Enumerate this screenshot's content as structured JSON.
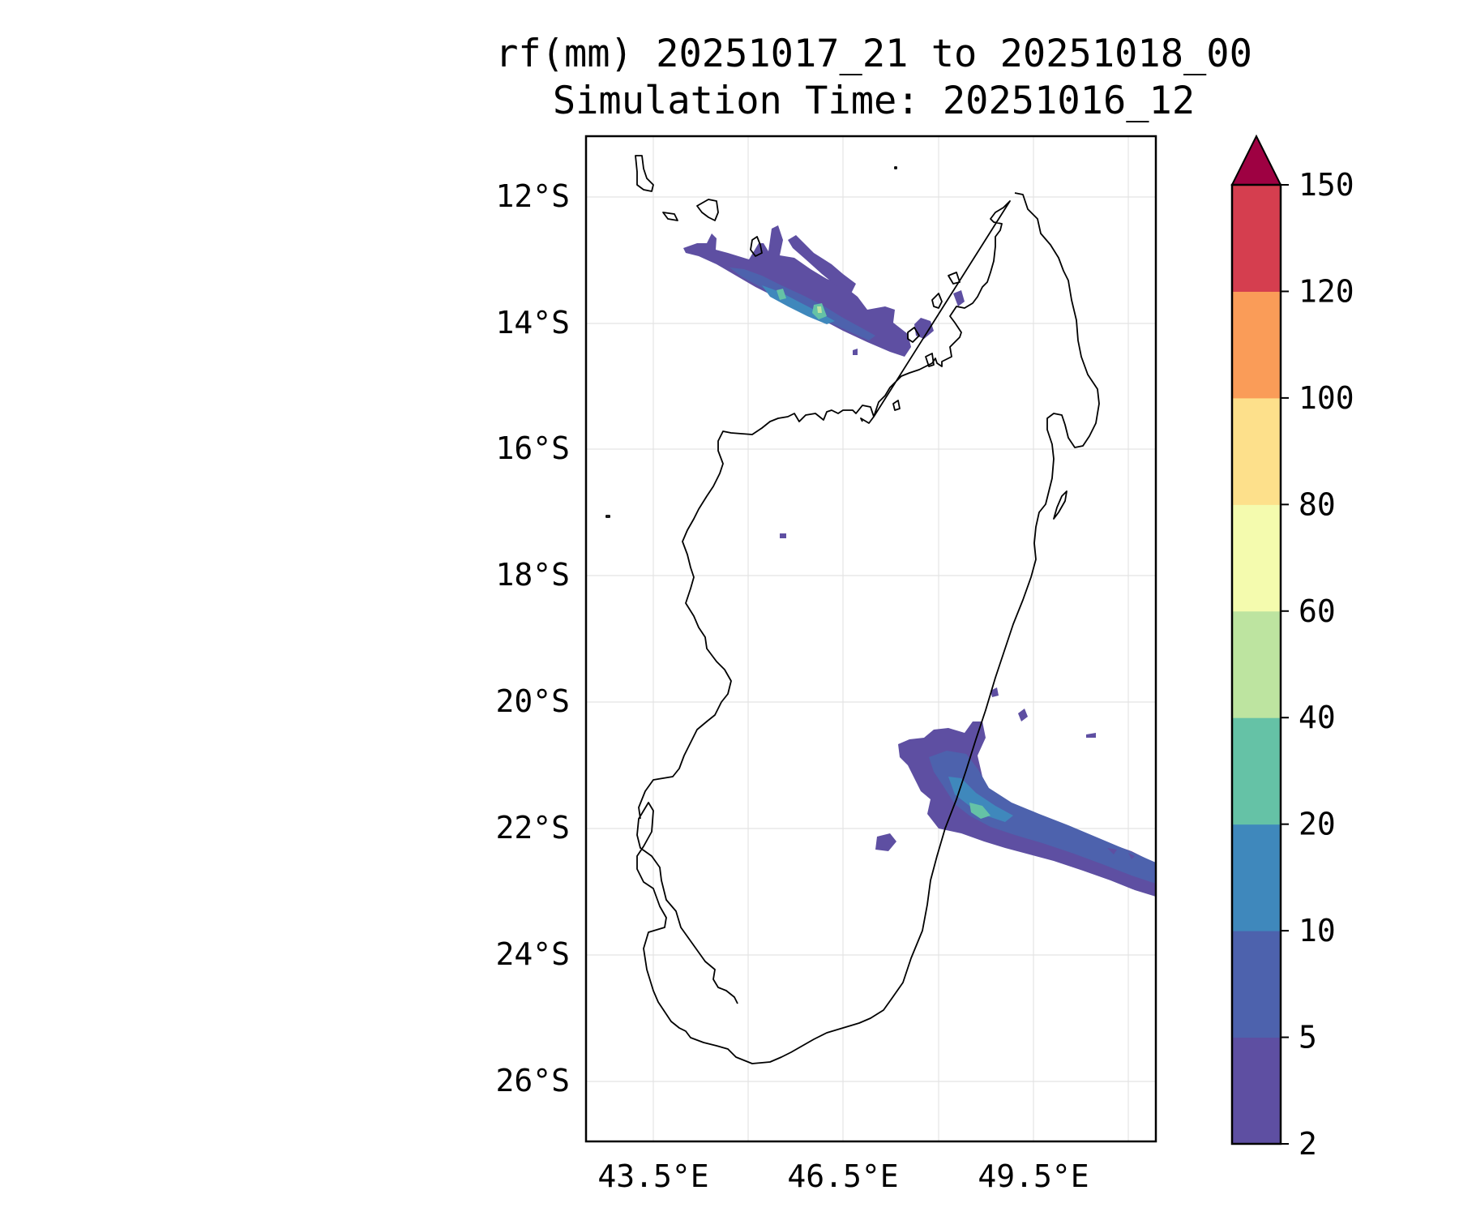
{
  "title": {
    "line1": "rf(mm) 20251017_21 to 20251018_00",
    "line2": "Simulation Time: 20251016_12"
  },
  "map": {
    "region": "Madagascar",
    "lon_range": [
      42.45,
      51.5
    ],
    "lat_range": [
      -26.95,
      -11.05
    ],
    "y_ticks": [
      "12°S",
      "14°S",
      "16°S",
      "18°S",
      "20°S",
      "22°S",
      "24°S",
      "26°S"
    ],
    "x_ticks": [
      "43.5°E",
      "46.5°E",
      "49.5°E"
    ],
    "gridlines": true,
    "coastline_color": "#000000"
  },
  "colorbar": {
    "units": "mm",
    "extend": "max",
    "levels": [
      "2",
      "5",
      "10",
      "20",
      "40",
      "60",
      "80",
      "100",
      "120",
      "150"
    ],
    "colors": [
      "#5e4fa2",
      "#4d62ad",
      "#3f88bc",
      "#65c2a6",
      "#bde4a0",
      "#f4fbae",
      "#fde08b",
      "#fa9c58",
      "#d53e4f"
    ],
    "extend_color": "#9e0142"
  },
  "rainfall_bands": [
    {
      "name": "north-west band",
      "max_level": "20-40 mm"
    },
    {
      "name": "south-east band",
      "max_level": "20-40 mm"
    }
  ]
}
